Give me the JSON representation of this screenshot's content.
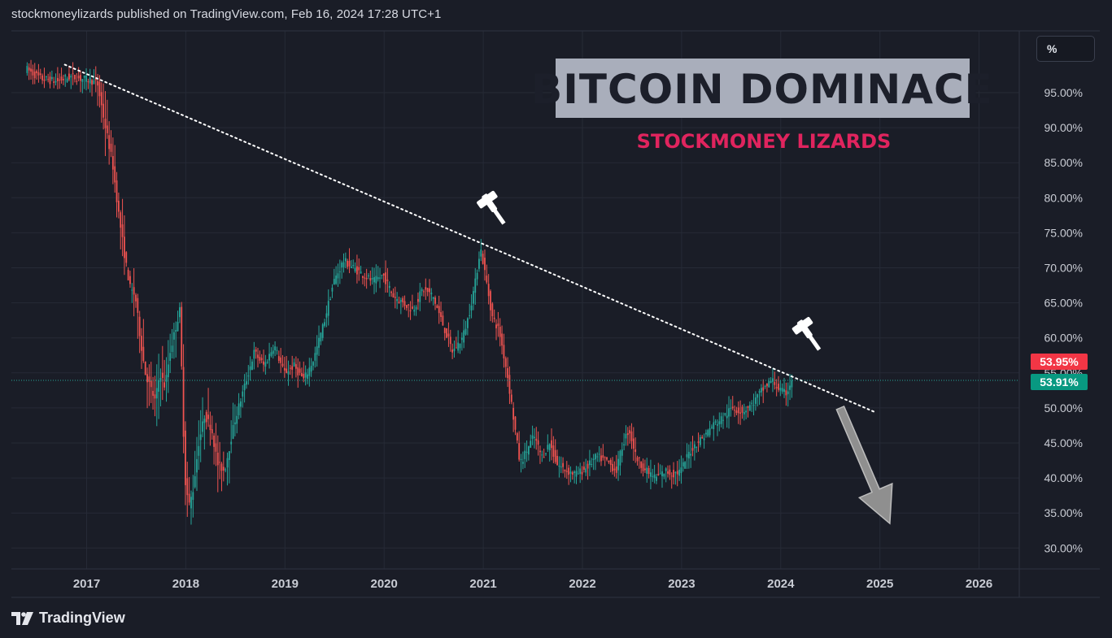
{
  "header": {
    "publisher_line": "stockmoneylizards published on TradingView.com, Feb 16, 2024 17:28 UTC+1"
  },
  "toolbar": {
    "scale_button_label": "%"
  },
  "annotations": {
    "title": "BITCOIN DOMINACE",
    "subtitle": "STOCKMONEY LIZARDS"
  },
  "branding": {
    "label": "TradingView",
    "icon": "tradingview-logo-icon"
  },
  "price_labels": {
    "upper": {
      "text": "53.95%",
      "color": "#f23645"
    },
    "lower": {
      "text": "53.91%",
      "color": "#089981"
    }
  },
  "colors": {
    "background": "#1a1d27",
    "up": "#26a69a",
    "down": "#ef5350",
    "title_box": "#a9aebb",
    "subtitle": "#e0245e",
    "trendline": "#ffffff",
    "arrow": "#8f8f8f"
  },
  "chart_data": {
    "type": "candlestick",
    "title": "BITCOIN DOMINACE",
    "y_axis": {
      "unit": "%",
      "range": [
        28,
        100
      ],
      "ticks": [
        "95.00%",
        "90.00%",
        "85.00%",
        "80.00%",
        "75.00%",
        "70.00%",
        "65.00%",
        "60.00%",
        "55.00%",
        "50.00%",
        "45.00%",
        "40.00%",
        "35.00%",
        "30.00%"
      ],
      "tick_values": [
        95,
        90,
        85,
        80,
        75,
        70,
        65,
        60,
        55,
        50,
        45,
        40,
        35,
        30
      ]
    },
    "x_axis": {
      "range": [
        2016.4,
        2026.4
      ],
      "ticks": [
        "2017",
        "2018",
        "2019",
        "2020",
        "2021",
        "2022",
        "2023",
        "2024",
        "2025",
        "2026"
      ],
      "tick_values": [
        2017,
        2018,
        2019,
        2020,
        2021,
        2022,
        2023,
        2024,
        2025,
        2026
      ]
    },
    "grid": true,
    "current_value": 53.93,
    "series": [
      {
        "name": "",
        "points": [
          [
            2016.4,
            98.4
          ],
          [
            2016.55,
            97.0
          ],
          [
            2016.7,
            96.6
          ],
          [
            2016.85,
            97.3
          ],
          [
            2016.95,
            97.0
          ],
          [
            2017.05,
            96.8
          ],
          [
            2017.12,
            96.2
          ],
          [
            2017.2,
            90.0
          ],
          [
            2017.27,
            85.0
          ],
          [
            2017.33,
            78.0
          ],
          [
            2017.4,
            71.0
          ],
          [
            2017.45,
            67.0
          ],
          [
            2017.5,
            66.0
          ],
          [
            2017.55,
            60.0
          ],
          [
            2017.6,
            55.0
          ],
          [
            2017.65,
            53.0
          ],
          [
            2017.7,
            51.0
          ],
          [
            2017.75,
            55.0
          ],
          [
            2017.8,
            53.0
          ],
          [
            2017.85,
            58.0
          ],
          [
            2017.9,
            61.0
          ],
          [
            2017.95,
            64.0
          ],
          [
            2018.0,
            40.0
          ],
          [
            2018.04,
            36.0
          ],
          [
            2018.08,
            38.0
          ],
          [
            2018.14,
            45.0
          ],
          [
            2018.2,
            49.0
          ],
          [
            2018.27,
            47.0
          ],
          [
            2018.33,
            42.0
          ],
          [
            2018.4,
            41.0
          ],
          [
            2018.5,
            48.0
          ],
          [
            2018.6,
            53.0
          ],
          [
            2018.7,
            58.0
          ],
          [
            2018.8,
            56.0
          ],
          [
            2018.9,
            59.0
          ],
          [
            2019.0,
            55.0
          ],
          [
            2019.1,
            56.0
          ],
          [
            2019.2,
            54.0
          ],
          [
            2019.3,
            57.0
          ],
          [
            2019.4,
            62.0
          ],
          [
            2019.5,
            68.0
          ],
          [
            2019.6,
            71.0
          ],
          [
            2019.7,
            70.0
          ],
          [
            2019.8,
            69.0
          ],
          [
            2019.9,
            68.0
          ],
          [
            2020.0,
            69.0
          ],
          [
            2020.1,
            66.0
          ],
          [
            2020.2,
            65.0
          ],
          [
            2020.3,
            64.0
          ],
          [
            2020.4,
            67.0
          ],
          [
            2020.5,
            66.0
          ],
          [
            2020.6,
            62.0
          ],
          [
            2020.7,
            58.0
          ],
          [
            2020.8,
            60.0
          ],
          [
            2020.86,
            63.0
          ],
          [
            2020.93,
            68.0
          ],
          [
            2020.98,
            73.0
          ],
          [
            2021.03,
            69.0
          ],
          [
            2021.1,
            63.0
          ],
          [
            2021.17,
            61.0
          ],
          [
            2021.25,
            55.0
          ],
          [
            2021.32,
            48.0
          ],
          [
            2021.38,
            42.0
          ],
          [
            2021.45,
            44.0
          ],
          [
            2021.52,
            46.0
          ],
          [
            2021.6,
            43.0
          ],
          [
            2021.68,
            45.0
          ],
          [
            2021.75,
            42.0
          ],
          [
            2021.85,
            41.0
          ],
          [
            2021.95,
            40.5
          ],
          [
            2022.05,
            41.5
          ],
          [
            2022.15,
            43.0
          ],
          [
            2022.25,
            42.5
          ],
          [
            2022.35,
            41.0
          ],
          [
            2022.42,
            45.0
          ],
          [
            2022.48,
            47.0
          ],
          [
            2022.55,
            43.0
          ],
          [
            2022.65,
            41.0
          ],
          [
            2022.75,
            40.0
          ],
          [
            2022.85,
            41.0
          ],
          [
            2022.92,
            40.5
          ],
          [
            2023.0,
            41.0
          ],
          [
            2023.08,
            43.5
          ],
          [
            2023.16,
            45.0
          ],
          [
            2023.24,
            46.0
          ],
          [
            2023.32,
            47.5
          ],
          [
            2023.42,
            48.5
          ],
          [
            2023.52,
            50.0
          ],
          [
            2023.62,
            49.5
          ],
          [
            2023.72,
            50.5
          ],
          [
            2023.82,
            52.5
          ],
          [
            2023.92,
            54.0
          ],
          [
            2024.0,
            52.5
          ],
          [
            2024.06,
            52.0
          ],
          [
            2024.12,
            53.9
          ]
        ]
      }
    ],
    "trendline": {
      "x": [
        2016.78,
        2024.95
      ],
      "y": [
        99.0,
        49.4
      ]
    },
    "markers": [
      {
        "icon": "gavel-icon",
        "x": 2021.1,
        "y": 78.5
      },
      {
        "icon": "gavel-icon",
        "x": 2024.28,
        "y": 60.5
      }
    ],
    "projection_arrow": {
      "from": [
        2024.6,
        50.0
      ],
      "to": [
        2025.1,
        33.5
      ]
    }
  }
}
